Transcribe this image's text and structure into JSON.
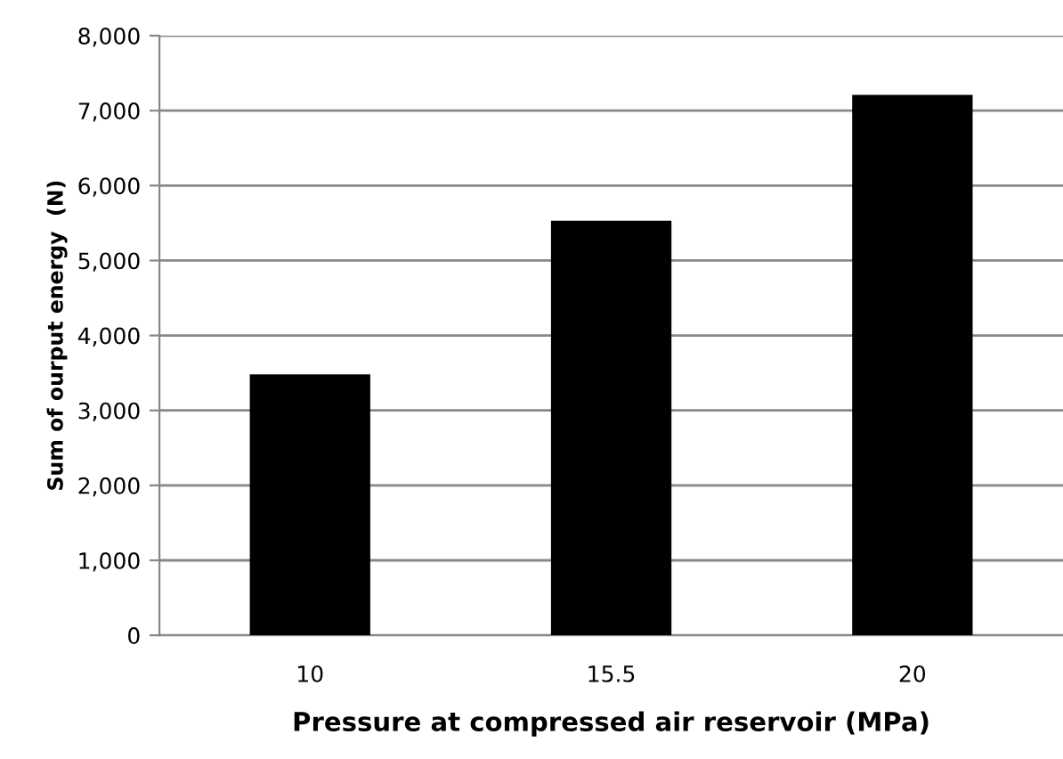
{
  "chart_data": {
    "type": "bar",
    "xlabel": "Pressure at compressed air reservoir (MPa)",
    "ylabel": "Sum of ourput energy  (N)",
    "categories": [
      "10",
      "15.5",
      "20"
    ],
    "values": [
      3480,
      5530,
      7210
    ],
    "color": "#000000",
    "ylim": [
      0,
      8000
    ],
    "yticks": [
      0,
      {
        "value": 1000,
        "label": "1,000"
      },
      {
        "value": 2000,
        "label": "2,000"
      },
      {
        "value": 3000,
        "label": "3,000"
      },
      {
        "value": 4000,
        "label": "4,000"
      },
      {
        "value": 5000,
        "label": "5,000"
      },
      {
        "value": 6000,
        "label": "6,000"
      },
      {
        "value": 7000,
        "label": "7,000"
      },
      {
        "value": 8000,
        "label": "8,000"
      }
    ],
    "grid": "y",
    "legend": false
  }
}
